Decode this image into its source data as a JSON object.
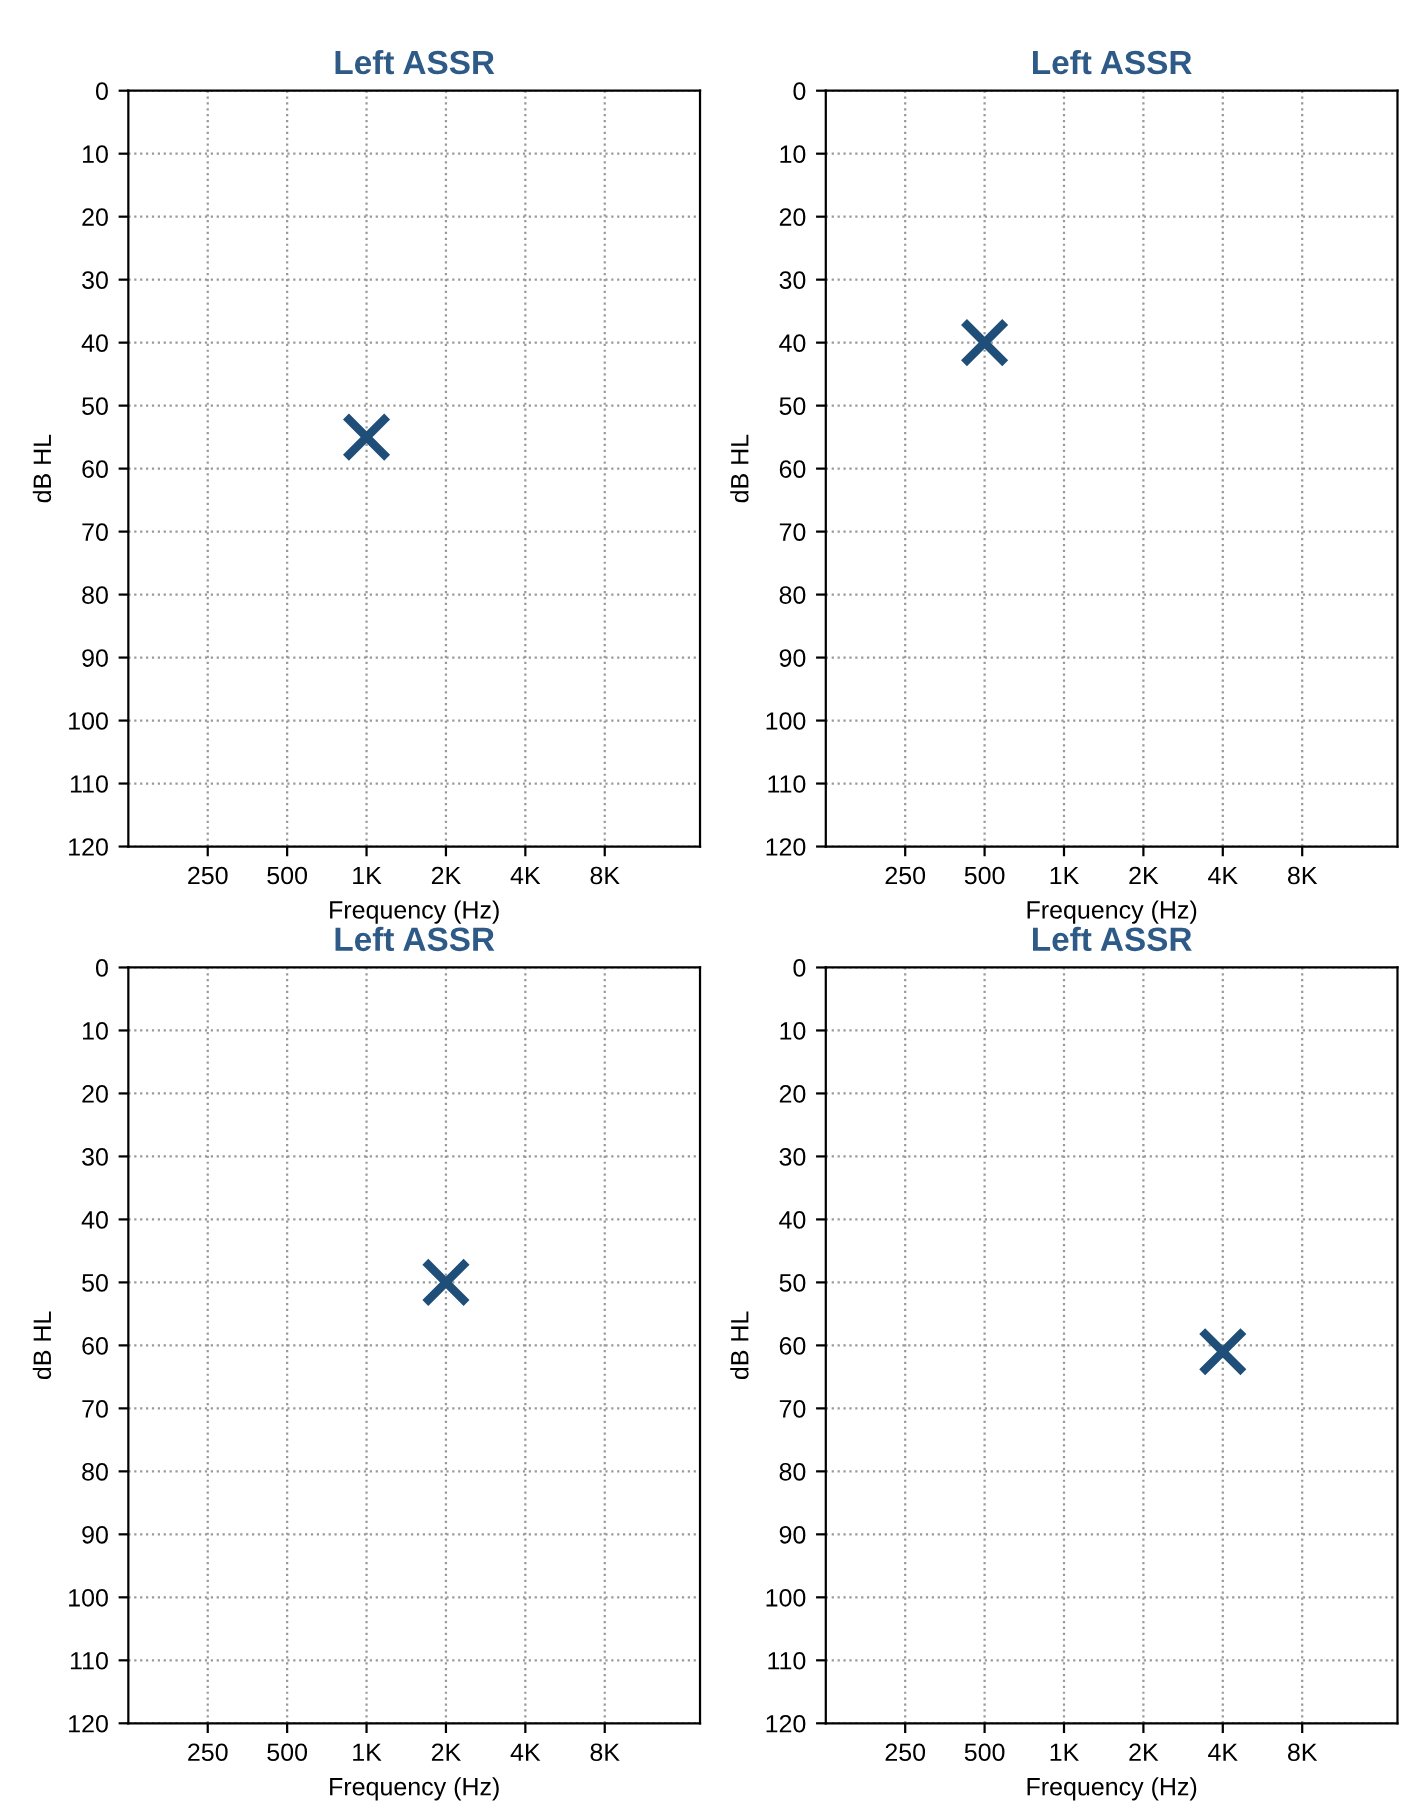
{
  "chart_data": [
    {
      "type": "scatter",
      "title": "Left ASSR",
      "xlabel": "Frequency (Hz)",
      "ylabel": "dB HL",
      "categories": [
        "250",
        "500",
        "1K",
        "2K",
        "4K",
        "8K"
      ],
      "series": [
        {
          "color": "#1f4e79",
          "x": [
            "1K"
          ],
          "values": [
            55
          ]
        }
      ],
      "ylim": [
        120,
        0
      ],
      "yticks": [
        0,
        10,
        20,
        30,
        40,
        50,
        60,
        70,
        80,
        90,
        100,
        110,
        120
      ],
      "grid": true,
      "marker": "cross"
    },
    {
      "type": "scatter",
      "title": "Left ASSR",
      "xlabel": "Frequency (Hz)",
      "ylabel": "dB HL",
      "categories": [
        "250",
        "500",
        "1K",
        "2K",
        "4K",
        "8K"
      ],
      "series": [
        {
          "color": "#1f4e79",
          "x": [
            "500"
          ],
          "values": [
            40
          ]
        }
      ],
      "ylim": [
        120,
        0
      ],
      "yticks": [
        0,
        10,
        20,
        30,
        40,
        50,
        60,
        70,
        80,
        90,
        100,
        110,
        120
      ],
      "grid": true,
      "marker": "cross"
    },
    {
      "type": "scatter",
      "title": "Left ASSR",
      "xlabel": "Frequency (Hz)",
      "ylabel": "dB HL",
      "categories": [
        "250",
        "500",
        "1K",
        "2K",
        "4K",
        "8K"
      ],
      "series": [
        {
          "color": "#1f4e79",
          "x": [
            "2K"
          ],
          "values": [
            50
          ]
        }
      ],
      "ylim": [
        120,
        0
      ],
      "yticks": [
        0,
        10,
        20,
        30,
        40,
        50,
        60,
        70,
        80,
        90,
        100,
        110,
        120
      ],
      "grid": true,
      "marker": "cross"
    },
    {
      "type": "scatter",
      "title": "Left ASSR",
      "xlabel": "Frequency (Hz)",
      "ylabel": "dB HL",
      "categories": [
        "250",
        "500",
        "1K",
        "2K",
        "4K",
        "8K"
      ],
      "series": [
        {
          "color": "#1f4e79",
          "x": [
            "4K"
          ],
          "values": [
            61
          ]
        }
      ],
      "ylim": [
        120,
        0
      ],
      "yticks": [
        0,
        10,
        20,
        30,
        40,
        50,
        60,
        70,
        80,
        90,
        100,
        110,
        120
      ],
      "grid": true,
      "marker": "cross"
    }
  ]
}
